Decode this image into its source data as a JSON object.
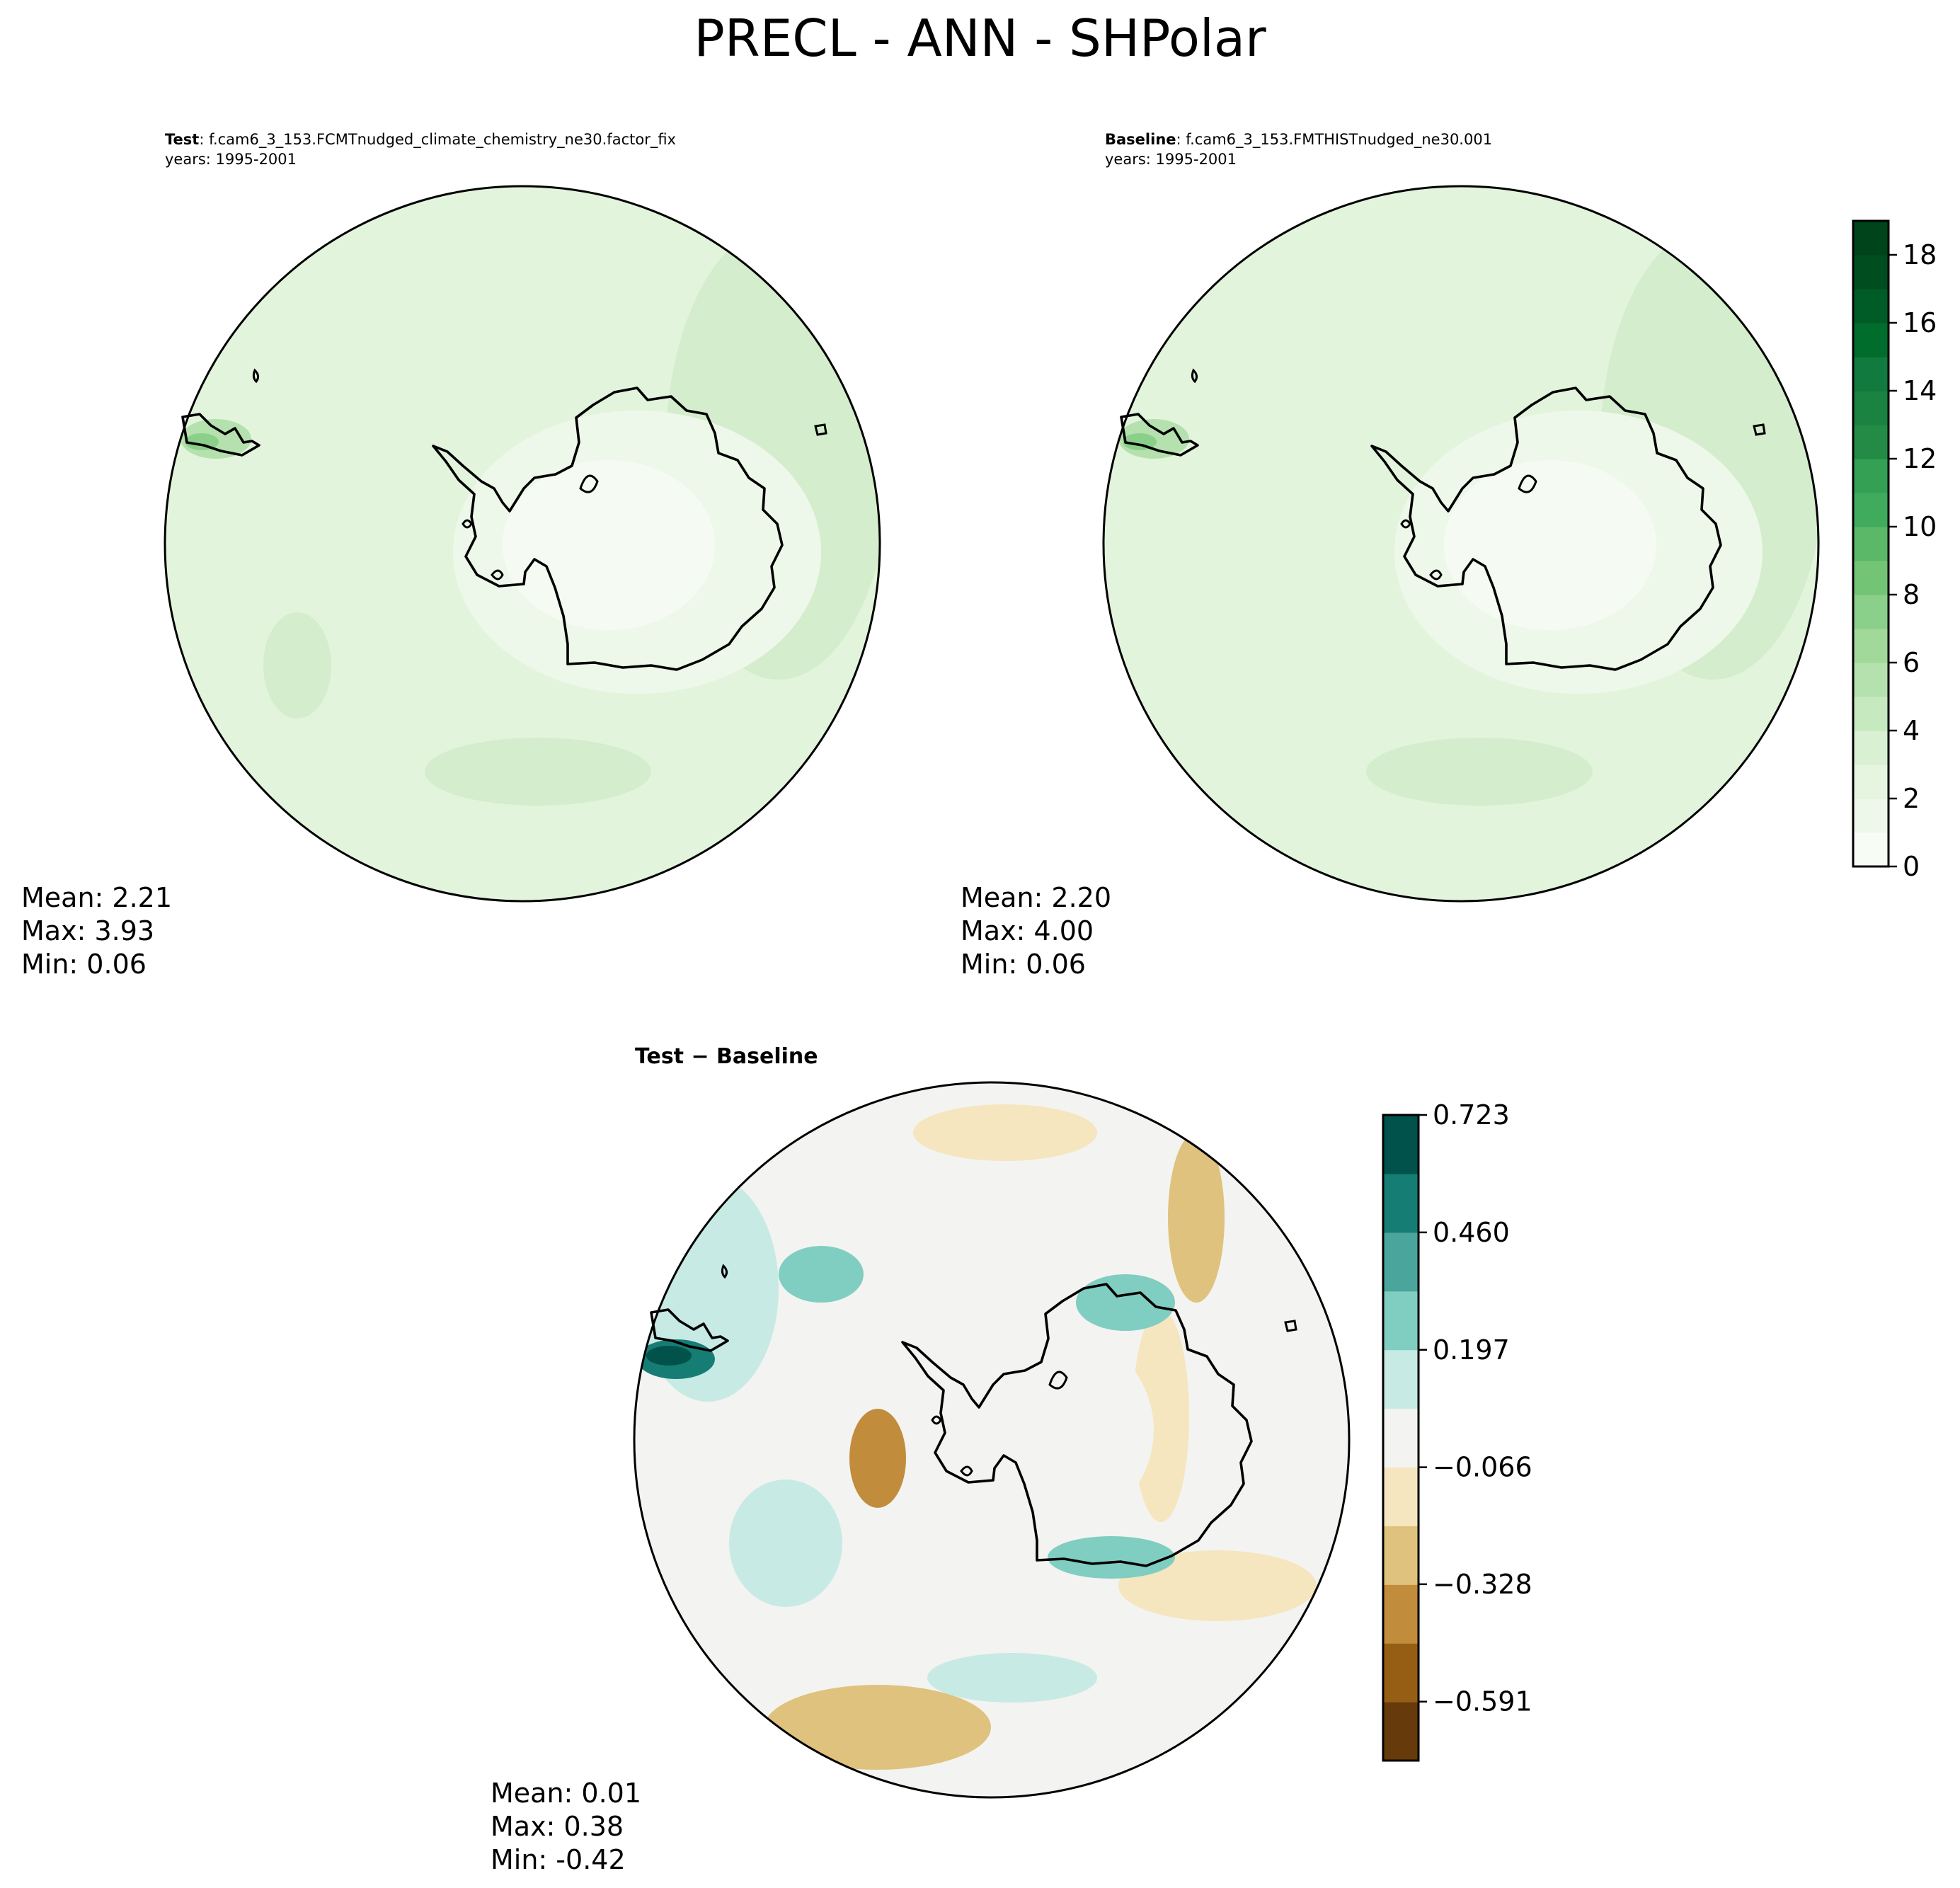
{
  "figure": {
    "title": "PRECL - ANN - SHPolar"
  },
  "panels": [
    {
      "id": "test",
      "label_bold": "Test",
      "case_name": ": f.cam6_3_153.FCMTnudged_climate_chemistry_ne30.factor_fix",
      "years": "years: 1995-2001",
      "stats": {
        "mean": "Mean:  2.21",
        "max": "Max:  3.93",
        "min": "Min:  0.06"
      }
    },
    {
      "id": "baseline",
      "label_bold": "Baseline",
      "case_name": ": f.cam6_3_153.FMTHISTnudged_ne30.001",
      "years": "years: 1995-2001",
      "stats": {
        "mean": "Mean:  2.20",
        "max": "Max:  4.00",
        "min": "Min:  0.06"
      }
    },
    {
      "id": "difference",
      "title": "Test − Baseline",
      "stats": {
        "mean": "Mean:  0.01",
        "max": "Max:  0.38",
        "min": "Min: -0.42"
      }
    }
  ],
  "colorbars": {
    "main": {
      "ticks": [
        "0",
        "2",
        "4",
        "6",
        "8",
        "10",
        "12",
        "14",
        "16",
        "18"
      ],
      "range": [
        0,
        19
      ],
      "colors": [
        "#f7fcf5",
        "#eef8ea",
        "#e5f5e0",
        "#d9f0d3",
        "#c7e9c0",
        "#b5e1ae",
        "#a1d99b",
        "#8bd08a",
        "#74c476",
        "#5ab868",
        "#41ab5d",
        "#33a054",
        "#238b45",
        "#1a8342",
        "#117a3e",
        "#006d2c",
        "#005c26",
        "#004e20",
        "#00441b"
      ]
    },
    "diff": {
      "ticks": [
        "0.723",
        "0.460",
        "0.197",
        "−0.066",
        "−0.328",
        "−0.591"
      ],
      "tick_values": [
        0.723,
        0.46,
        0.197,
        -0.066,
        -0.328,
        -0.591
      ],
      "range": [
        -0.723,
        0.723
      ],
      "colors": [
        "#663a0a",
        "#965e15",
        "#c18c3c",
        "#dfc27d",
        "#f5e6bf",
        "#f3f3f1",
        "#c7eae5",
        "#80cdc1",
        "#4aa69c",
        "#167d75",
        "#01524b"
      ]
    }
  },
  "chart_data": [
    {
      "type": "heatmap",
      "title": "Test",
      "subtitle": "f.cam6_3_153.FCMTnudged_climate_chemistry_ne30.factor_fix",
      "years": "1995-2001",
      "projection": "south polar stereographic",
      "colorbar_range": [
        0,
        19
      ],
      "colorbar_ticks": [
        0,
        2,
        4,
        6,
        8,
        10,
        12,
        14,
        16,
        18
      ],
      "mean": 2.21,
      "max": 3.93,
      "min": 0.06
    },
    {
      "type": "heatmap",
      "title": "Baseline",
      "subtitle": "f.cam6_3_153.FMTHISTnudged_ne30.001",
      "years": "1995-2001",
      "projection": "south polar stereographic",
      "colorbar_range": [
        0,
        19
      ],
      "colorbar_ticks": [
        0,
        2,
        4,
        6,
        8,
        10,
        12,
        14,
        16,
        18
      ],
      "mean": 2.2,
      "max": 4.0,
      "min": 0.06
    },
    {
      "type": "heatmap",
      "title": "Test − Baseline",
      "projection": "south polar stereographic",
      "colorbar_range": [
        -0.723,
        0.723
      ],
      "colorbar_ticks": [
        0.723,
        0.46,
        0.197,
        -0.066,
        -0.328,
        -0.591
      ],
      "mean": 0.01,
      "max": 0.38,
      "min": -0.42
    }
  ]
}
